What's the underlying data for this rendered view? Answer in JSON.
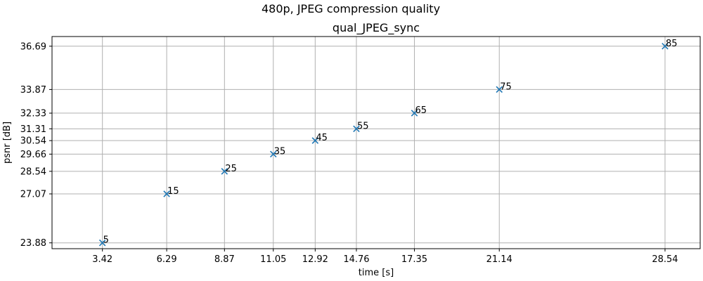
{
  "figure": {
    "suptitle": "480p, JPEG compression quality"
  },
  "chart_data": {
    "type": "scatter",
    "title": "qual_JPEG_sync",
    "xlabel": "time [s]",
    "ylabel": "psnr [dB]",
    "marker": "x",
    "color": "#1f77b4",
    "grid": true,
    "xlim": [
      1.17,
      30.11
    ],
    "ylim": [
      23.5,
      37.32
    ],
    "xticks": [
      "3.42",
      "6.29",
      "8.87",
      "11.05",
      "12.92",
      "14.76",
      "17.35",
      "21.14",
      "28.54"
    ],
    "yticks": [
      "23.88",
      "27.07",
      "28.54",
      "29.66",
      "30.54",
      "31.31",
      "32.33",
      "33.87",
      "36.69"
    ],
    "points": [
      {
        "x": 3.42,
        "y": 23.88,
        "label": "5"
      },
      {
        "x": 6.29,
        "y": 27.07,
        "label": "15"
      },
      {
        "x": 8.87,
        "y": 28.54,
        "label": "25"
      },
      {
        "x": 11.05,
        "y": 29.66,
        "label": "35"
      },
      {
        "x": 12.92,
        "y": 30.54,
        "label": "45"
      },
      {
        "x": 14.76,
        "y": 31.31,
        "label": "55"
      },
      {
        "x": 17.35,
        "y": 32.33,
        "label": "65"
      },
      {
        "x": 21.14,
        "y": 33.87,
        "label": "75"
      },
      {
        "x": 28.54,
        "y": 36.69,
        "label": "85"
      }
    ]
  }
}
